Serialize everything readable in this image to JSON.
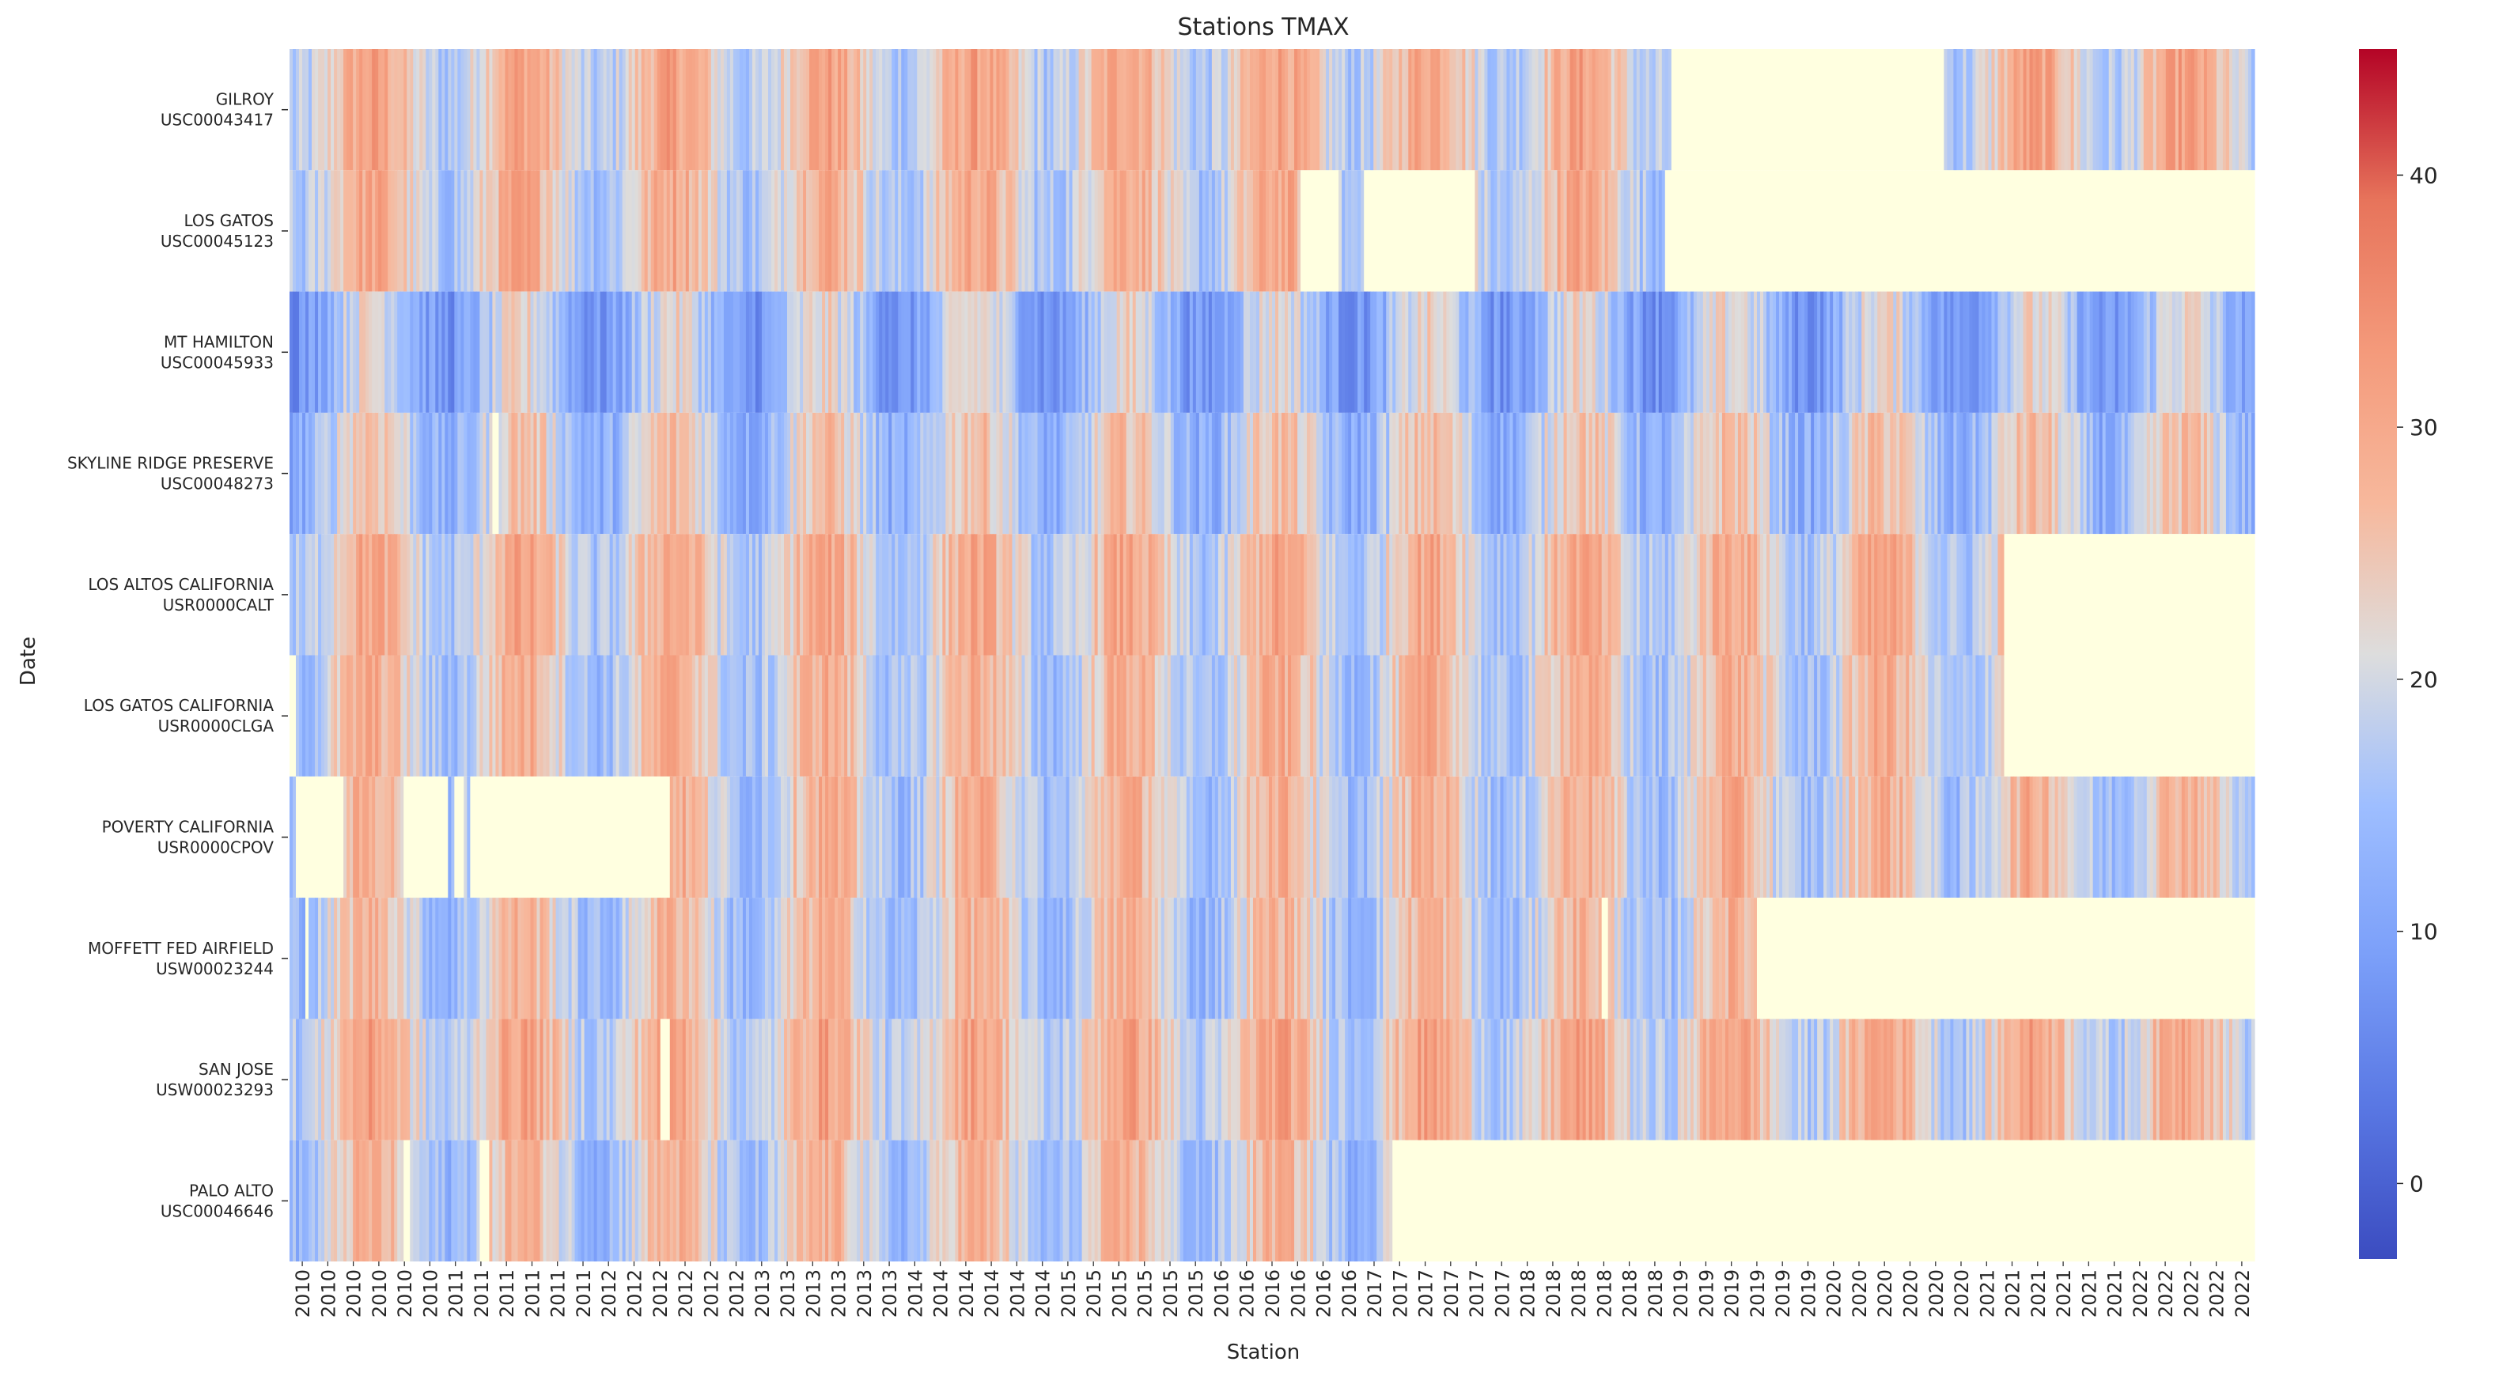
{
  "chart_data": {
    "type": "heatmap",
    "title": "Stations TMAX",
    "xlabel": "Station",
    "ylabel": "Date",
    "rows": [
      {
        "name": "GILROY",
        "id": "USC00043417"
      },
      {
        "name": "LOS GATOS",
        "id": "USC00045123"
      },
      {
        "name": "MT HAMILTON",
        "id": "USC00045933"
      },
      {
        "name": "SKYLINE RIDGE PRESERVE",
        "id": "USC00048273"
      },
      {
        "name": "LOS ALTOS CALIFORNIA",
        "id": "USR0000CALT"
      },
      {
        "name": "LOS GATOS CALIFORNIA",
        "id": "USR0000CLGA"
      },
      {
        "name": "POVERTY CALIFORNIA",
        "id": "USR0000CPOV"
      },
      {
        "name": "MOFFETT FED AIRFIELD",
        "id": "USW00023244"
      },
      {
        "name": "SAN JOSE",
        "id": "USW00023293"
      },
      {
        "name": "PALO ALTO",
        "id": "USC00046646"
      }
    ],
    "x_tick_labels": [
      "2010",
      "2010",
      "2010",
      "2010",
      "2010",
      "2010",
      "2011",
      "2011",
      "2011",
      "2011",
      "2011",
      "2011",
      "2012",
      "2012",
      "2012",
      "2012",
      "2012",
      "2012",
      "2013",
      "2013",
      "2013",
      "2013",
      "2013",
      "2013",
      "2014",
      "2014",
      "2014",
      "2014",
      "2014",
      "2014",
      "2015",
      "2015",
      "2015",
      "2015",
      "2015",
      "2015",
      "2016",
      "2016",
      "2016",
      "2016",
      "2016",
      "2016",
      "2017",
      "2017",
      "2017",
      "2017",
      "2017",
      "2017",
      "2018",
      "2018",
      "2018",
      "2018",
      "2018",
      "2018",
      "2019",
      "2019",
      "2019",
      "2019",
      "2019",
      "2019",
      "2020",
      "2020",
      "2020",
      "2020",
      "2020",
      "2020",
      "2021",
      "2021",
      "2021",
      "2021",
      "2021",
      "2021",
      "2022",
      "2022",
      "2022",
      "2022",
      "2022"
    ],
    "colorbar": {
      "min": -3,
      "max": 45,
      "ticks": [
        0,
        10,
        20,
        30,
        40
      ],
      "colormap": "coolwarm"
    },
    "missing_color": "#ffffe0",
    "time_range": [
      "2010",
      "2022"
    ],
    "station_mean_tmax": [
      24,
      23,
      15,
      19,
      23,
      22,
      22,
      21,
      24,
      21
    ],
    "missing_intervals": [
      [
        [
          2019.15,
          2020.95
        ]
      ],
      [
        [
          2016.68,
          2016.95
        ],
        [
          2017.1,
          2017.85
        ],
        [
          2019.1,
          2023.0
        ]
      ],
      [],
      [
        [
          2011.34,
          2011.38
        ]
      ],
      [
        [
          2021.35,
          2023.0
        ]
      ],
      [
        [
          2010.0,
          2010.05
        ],
        [
          2021.35,
          2023.0
        ]
      ],
      [
        [
          2010.05,
          2010.35
        ],
        [
          2010.75,
          2011.05
        ],
        [
          2011.1,
          2011.15
        ],
        [
          2011.2,
          2012.52
        ]
      ],
      [
        [
          2010.1,
          2010.13
        ],
        [
          2018.68,
          2018.72
        ],
        [
          2019.7,
          2023.0
        ]
      ],
      [
        [
          2012.45,
          2012.52
        ]
      ],
      [
        [
          2010.75,
          2010.8
        ],
        [
          2011.25,
          2011.33
        ],
        [
          2017.3,
          2023.0
        ]
      ]
    ],
    "grid": false,
    "legend": "colorbar on right"
  }
}
